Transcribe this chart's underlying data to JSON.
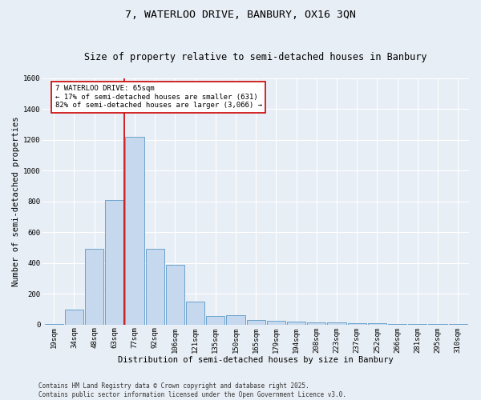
{
  "title_line1": "7, WATERLOO DRIVE, BANBURY, OX16 3QN",
  "title_line2": "Size of property relative to semi-detached houses in Banbury",
  "xlabel": "Distribution of semi-detached houses by size in Banbury",
  "ylabel": "Number of semi-detached properties",
  "categories": [
    "19sqm",
    "34sqm",
    "48sqm",
    "63sqm",
    "77sqm",
    "92sqm",
    "106sqm",
    "121sqm",
    "135sqm",
    "150sqm",
    "165sqm",
    "179sqm",
    "194sqm",
    "208sqm",
    "223sqm",
    "237sqm",
    "252sqm",
    "266sqm",
    "281sqm",
    "295sqm",
    "310sqm"
  ],
  "values": [
    5,
    100,
    490,
    810,
    1220,
    490,
    390,
    150,
    55,
    60,
    30,
    25,
    20,
    15,
    12,
    10,
    7,
    5,
    4,
    3,
    2
  ],
  "bar_color": "#c5d8ed",
  "bar_edge_color": "#6ba3cc",
  "vline_x_idx": 3.5,
  "vline_color": "#cc0000",
  "annotation_text": "7 WATERLOO DRIVE: 65sqm\n← 17% of semi-detached houses are smaller (631)\n82% of semi-detached houses are larger (3,066) →",
  "annotation_box_facecolor": "#ffffff",
  "annotation_box_edgecolor": "#cc0000",
  "ylim": [
    0,
    1600
  ],
  "yticks": [
    0,
    200,
    400,
    600,
    800,
    1000,
    1200,
    1400,
    1600
  ],
  "footer_text": "Contains HM Land Registry data © Crown copyright and database right 2025.\nContains public sector information licensed under the Open Government Licence v3.0.",
  "bg_color": "#e8eef5",
  "title_fontsize": 9.5,
  "subtitle_fontsize": 8.5,
  "axis_label_fontsize": 7.5,
  "tick_fontsize": 6.5,
  "annotation_fontsize": 6.5,
  "footer_fontsize": 5.5
}
